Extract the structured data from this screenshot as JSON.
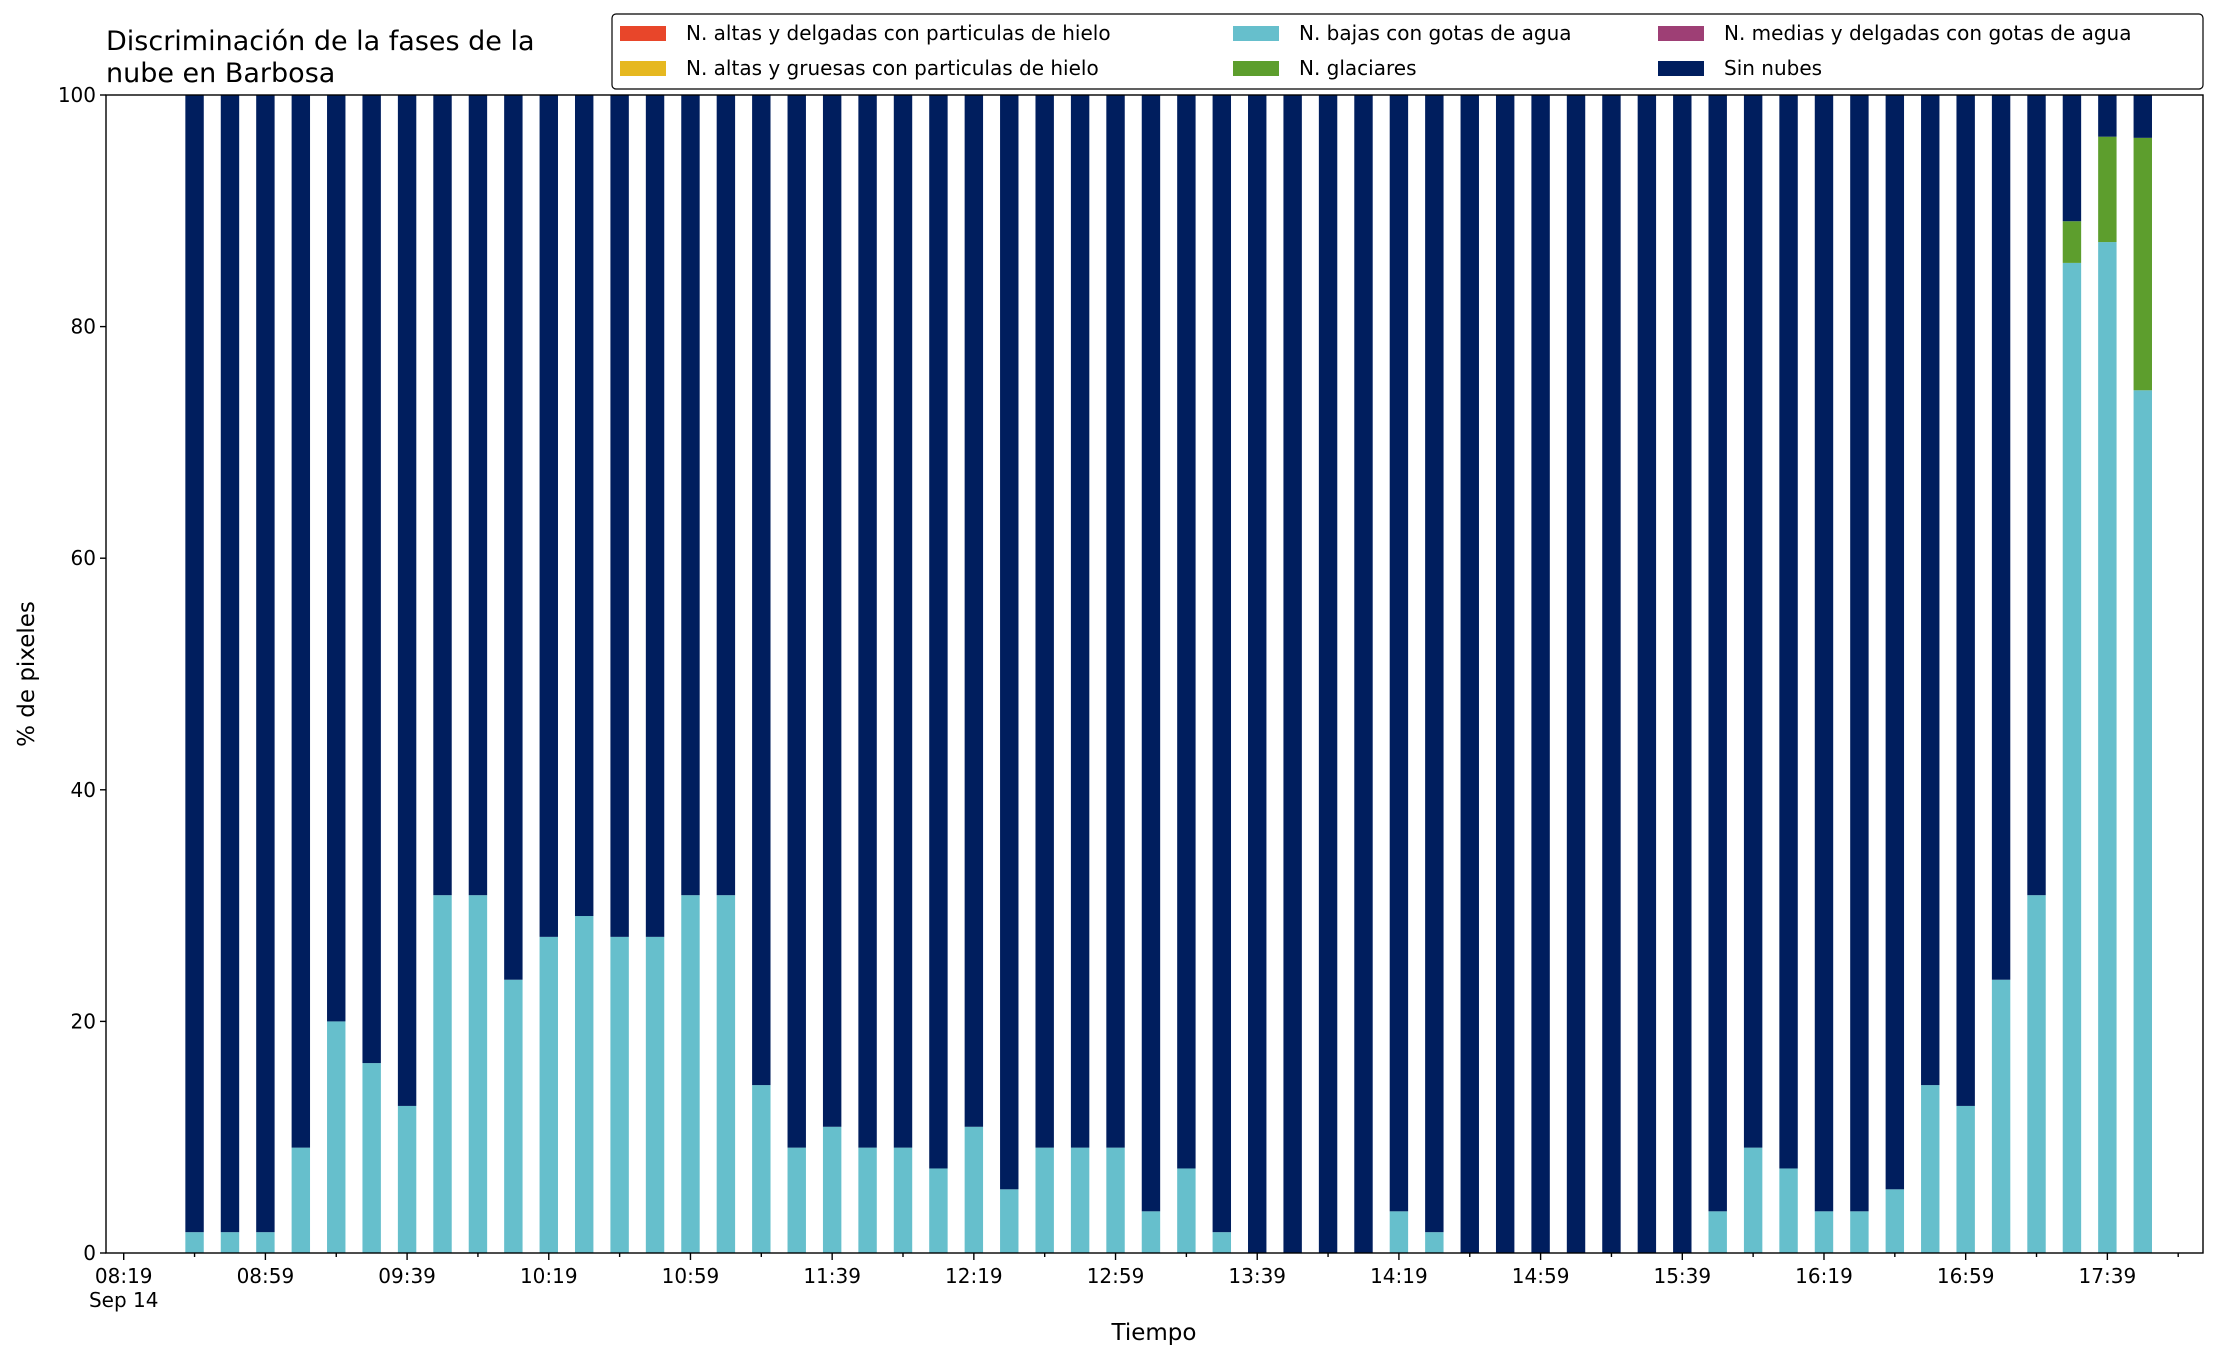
{
  "chart_data": {
    "type": "stacked_bar",
    "title": "Discriminación de la fases de la\nnube en Barbosa",
    "xlabel": "Tiempo",
    "ylabel": "% de pixeles",
    "x": [
      "08:39",
      "08:49",
      "08:59",
      "09:09",
      "09:19",
      "09:29",
      "09:39",
      "09:49",
      "09:59",
      "10:09",
      "10:19",
      "10:29",
      "10:39",
      "10:49",
      "10:59",
      "11:09",
      "11:19",
      "11:29",
      "11:39",
      "11:49",
      "11:59",
      "12:09",
      "12:19",
      "12:29",
      "12:39",
      "12:49",
      "12:59",
      "13:09",
      "13:19",
      "13:29",
      "13:39",
      "13:49",
      "13:59",
      "14:09",
      "14:19",
      "14:29",
      "14:39",
      "14:49",
      "14:59",
      "15:09",
      "15:19",
      "15:29",
      "15:39",
      "15:49",
      "15:59",
      "16:09",
      "16:19",
      "16:29",
      "16:39",
      "16:49",
      "16:59",
      "17:09",
      "17:19",
      "17:29",
      "17:39",
      "17:49"
    ],
    "series": [
      {
        "name": "N. altas y delgadas con particulas de hielo",
        "color": "#e8462a",
        "values": [
          0,
          0,
          0,
          0,
          0,
          0,
          0,
          0,
          0,
          0,
          0,
          0,
          0,
          0,
          0,
          0,
          0,
          0,
          0,
          0,
          0,
          0,
          0,
          0,
          0,
          0,
          0,
          0,
          0,
          0,
          0,
          0,
          0,
          0,
          0,
          0,
          0,
          0,
          0,
          0,
          0,
          0,
          0,
          0,
          0,
          0,
          0,
          0,
          0,
          0,
          0,
          0,
          0,
          0,
          0,
          0
        ]
      },
      {
        "name": "N. altas y gruesas con particulas de hielo",
        "color": "#e6b820",
        "values": [
          0,
          0,
          0,
          0,
          0,
          0,
          0,
          0,
          0,
          0,
          0,
          0,
          0,
          0,
          0,
          0,
          0,
          0,
          0,
          0,
          0,
          0,
          0,
          0,
          0,
          0,
          0,
          0,
          0,
          0,
          0,
          0,
          0,
          0,
          0,
          0,
          0,
          0,
          0,
          0,
          0,
          0,
          0,
          0,
          0,
          0,
          0,
          0,
          0,
          0,
          0,
          0,
          0,
          0,
          0,
          0
        ]
      },
      {
        "name": "N. bajas con gotas de agua",
        "color": "#66bfcc",
        "values": [
          1.8,
          1.8,
          1.8,
          9.1,
          20,
          16.4,
          12.7,
          30.9,
          30.9,
          23.6,
          27.3,
          29.1,
          27.3,
          27.3,
          30.9,
          30.9,
          14.5,
          9.1,
          10.9,
          9.1,
          9.1,
          7.3,
          10.9,
          5.5,
          9.1,
          9.1,
          9.1,
          3.6,
          7.3,
          1.8,
          0,
          0,
          0,
          0,
          3.6,
          1.8,
          0,
          0,
          0,
          0,
          0,
          0,
          0,
          3.6,
          9.1,
          7.3,
          3.6,
          3.6,
          5.5,
          14.5,
          12.7,
          23.6,
          30.9,
          85.5,
          87.3,
          74.5
        ]
      },
      {
        "name": "N. glaciares",
        "color": "#5d9e2d",
        "values": [
          0,
          0,
          0,
          0,
          0,
          0,
          0,
          0,
          0,
          0,
          0,
          0,
          0,
          0,
          0,
          0,
          0,
          0,
          0,
          0,
          0,
          0,
          0,
          0,
          0,
          0,
          0,
          0,
          0,
          0,
          0,
          0,
          0,
          0,
          0,
          0,
          0,
          0,
          0,
          0,
          0,
          0,
          0,
          0,
          0,
          0,
          0,
          0,
          0,
          0,
          0,
          0,
          0,
          3.6,
          9.1,
          21.8
        ]
      },
      {
        "name": "N. medias y delgadas con gotas de agua",
        "color": "#9e3f75",
        "values": [
          0,
          0,
          0,
          0,
          0,
          0,
          0,
          0,
          0,
          0,
          0,
          0,
          0,
          0,
          0,
          0,
          0,
          0,
          0,
          0,
          0,
          0,
          0,
          0,
          0,
          0,
          0,
          0,
          0,
          0,
          0,
          0,
          0,
          0,
          0,
          0,
          0,
          0,
          0,
          0,
          0,
          0,
          0,
          0,
          0,
          0,
          0,
          0,
          0,
          0,
          0,
          0,
          0,
          0,
          0,
          0
        ]
      },
      {
        "name": "Sin nubes",
        "color": "#001e5e",
        "values": [
          98.2,
          98.2,
          98.2,
          90.9,
          80,
          83.6,
          87.3,
          69.1,
          69.1,
          76.4,
          72.7,
          70.9,
          72.7,
          72.7,
          69.1,
          69.1,
          85.5,
          90.9,
          89.1,
          90.9,
          90.9,
          92.7,
          89.1,
          94.5,
          90.9,
          90.9,
          90.9,
          96.4,
          92.7,
          98.2,
          100,
          100,
          100,
          100,
          96.4,
          98.2,
          100,
          100,
          100,
          100,
          100,
          100,
          100,
          96.4,
          90.9,
          92.7,
          96.4,
          96.4,
          94.5,
          85.5,
          87.3,
          76.4,
          69.1,
          10.9,
          3.6,
          3.7
        ]
      }
    ],
    "xlim": [
      "08:14",
      "18:06"
    ],
    "xticks": [
      {
        "value": "08:19",
        "label": "08:19",
        "sublabel": "Sep 14"
      },
      "08:59",
      "09:39",
      "10:19",
      "10:59",
      "11:39",
      "12:19",
      "12:59",
      "13:39",
      "14:19",
      "14:59",
      "15:39",
      "16:19",
      "16:59",
      "17:39"
    ],
    "xminorticks": [
      "08:39",
      "09:19",
      "09:59",
      "10:39",
      "11:19",
      "11:59",
      "12:39",
      "13:19",
      "13:59",
      "14:39",
      "15:19",
      "15:59",
      "16:39",
      "17:19",
      "17:59"
    ],
    "ylim": [
      0,
      100
    ],
    "yticks": [
      0,
      20,
      40,
      60,
      80,
      100
    ],
    "legend": "top-right"
  }
}
